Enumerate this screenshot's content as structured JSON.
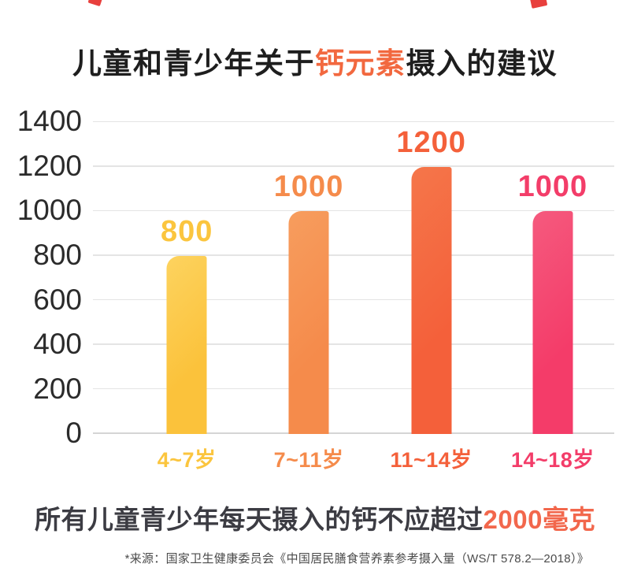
{
  "title": {
    "prefix": "儿童和青少年关于",
    "accent": "钙元素",
    "suffix": "摄入的建议"
  },
  "chart_data": {
    "type": "bar",
    "title": "儿童和青少年关于钙元素摄入的建议",
    "categories": [
      "4~7岁",
      "7~11岁",
      "11~14岁",
      "14~18岁"
    ],
    "values": [
      800,
      1000,
      1200,
      1000
    ],
    "value_labels": [
      "800",
      "1000",
      "1200",
      "1000"
    ],
    "yticks": [
      0,
      200,
      400,
      600,
      800,
      1000,
      1200,
      1400
    ],
    "ylim": [
      0,
      1400
    ],
    "xlabel": "",
    "ylabel": "",
    "grid": true,
    "legend": "none",
    "bar_colors": [
      "#fbc23b",
      "#f58b4b",
      "#f4603a",
      "#f43c69"
    ],
    "bar_colors_light": [
      "#fdd35f",
      "#f79d5e",
      "#f5764a",
      "#f55a7e"
    ],
    "label_colors": [
      "#fbc53e",
      "#f58b4b",
      "#f4603a",
      "#f33d69"
    ]
  },
  "footer": {
    "statement_prefix": "所有儿童青少年每天摄入的钙不应超过",
    "statement_accent": "2000毫克",
    "source_note": "*来源：国家卫生健康委员会《中国居民膳食营养素参考摄入量（WS/T 578.2—2018）》"
  },
  "colors": {
    "accent_orange": "#f2683f",
    "text_dark": "#1e1e1e",
    "statement_dark": "#3c3c43",
    "gridline": "#e4e4e4",
    "background": "#ffffff"
  }
}
